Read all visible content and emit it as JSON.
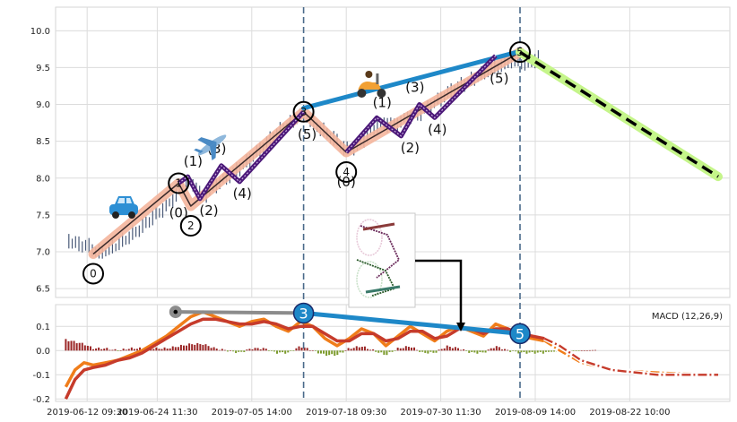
{
  "chart_data": [
    {
      "type": "line",
      "panel": "price",
      "x_tick_labels": [
        "2019-06-12 09:30",
        "2019-06-24 11:30",
        "2019-07-05 14:00",
        "2019-07-18 09:30",
        "2019-07-30 11:30",
        "2019-08-09 14:00",
        "2019-08-22 10:00"
      ],
      "ylim": [
        6.38,
        10.32
      ],
      "yticks": [
        "6.5",
        "7.0",
        "7.5",
        "8.0",
        "8.5",
        "9.0",
        "9.5",
        "10.0"
      ],
      "grid": true,
      "price_points": [
        [
          2,
          7.15
        ],
        [
          5,
          7.1
        ],
        [
          8,
          7.08
        ],
        [
          12,
          6.98
        ],
        [
          16,
          7.05
        ],
        [
          20,
          7.15
        ],
        [
          25,
          7.3
        ],
        [
          30,
          7.48
        ],
        [
          34,
          7.62
        ],
        [
          38,
          7.8
        ],
        [
          41,
          7.97
        ],
        [
          43,
          7.9
        ],
        [
          46,
          7.75
        ],
        [
          50,
          7.9
        ],
        [
          55,
          8.05
        ],
        [
          60,
          8.2
        ],
        [
          65,
          8.4
        ],
        [
          70,
          8.6
        ],
        [
          75,
          8.75
        ],
        [
          79,
          8.88
        ],
        [
          82,
          8.75
        ],
        [
          86,
          8.62
        ],
        [
          90,
          8.5
        ],
        [
          93,
          8.38
        ],
        [
          97,
          8.45
        ],
        [
          101,
          8.62
        ],
        [
          105,
          8.75
        ],
        [
          109,
          8.72
        ],
        [
          113,
          8.82
        ],
        [
          118,
          8.9
        ],
        [
          123,
          9.05
        ],
        [
          128,
          9.2
        ],
        [
          133,
          9.3
        ],
        [
          138,
          9.42
        ],
        [
          143,
          9.52
        ],
        [
          148,
          9.6
        ],
        [
          152,
          9.55
        ],
        [
          156,
          9.62
        ]
      ],
      "waves": {
        "main": {
          "points": [
            [
              10,
              6.97
            ],
            [
              38,
              7.93
            ],
            [
              42,
              7.62
            ],
            [
              79,
              8.9
            ],
            [
              93,
              8.35
            ],
            [
              150,
              9.71
            ]
          ],
          "labels": [
            "0",
            "1",
            "2",
            "3",
            "4",
            "5"
          ]
        },
        "sub_one": {
          "points": [
            [
              38,
              7.93
            ],
            [
              41,
              8.02
            ],
            [
              45,
              7.72
            ],
            [
              52,
              8.17
            ],
            [
              58,
              7.95
            ],
            [
              79,
              8.9
            ]
          ],
          "labels": [
            "(0)",
            "(1)",
            "(2)",
            "(3)",
            "(4)",
            "(5)"
          ]
        },
        "sub_two": {
          "points": [
            [
              93,
              8.35
            ],
            [
              103,
              8.82
            ],
            [
              111,
              8.57
            ],
            [
              117,
              9.0
            ],
            [
              122,
              8.82
            ],
            [
              142,
              9.66
            ]
          ],
          "labels": [
            "(0)",
            "(1)",
            "(2)",
            "(3)",
            "(4)",
            "(5)"
          ]
        },
        "trend_line": [
          [
            79,
            8.95
          ],
          [
            150,
            9.72
          ]
        ],
        "forecast": [
          [
            150,
            9.71
          ],
          [
            215,
            8.02
          ]
        ],
        "vertical_markers": [
          79,
          150
        ]
      },
      "icons": [
        "car-icon",
        "airplane-icon",
        "scooter-icon"
      ],
      "colors": {
        "price": "#4a5a78",
        "main_wave": "#f4b59c",
        "main_wave_core": "#3a2a2a",
        "sub_wave": "#4b1878",
        "trend_line": "#1e88c8",
        "forecast_glow": "#c5f58a",
        "forecast": "#000000",
        "marker": "#4a6a8a"
      }
    },
    {
      "type": "line",
      "panel": "macd",
      "legend": "MACD (12,26,9)",
      "legend_position": "top-right",
      "ylim": [
        -0.21,
        0.19
      ],
      "yticks": [
        "-0.2",
        "-0.1",
        "0.0",
        "0.1"
      ],
      "series": [
        {
          "values": [
            [
              1,
              -0.15
            ],
            [
              4,
              -0.08
            ],
            [
              7,
              -0.05
            ],
            [
              10,
              -0.06
            ],
            [
              14,
              -0.05
            ],
            [
              18,
              -0.04
            ],
            [
              22,
              -0.02
            ],
            [
              26,
              0.0
            ],
            [
              30,
              0.03
            ],
            [
              34,
              0.06
            ],
            [
              38,
              0.1
            ],
            [
              42,
              0.14
            ],
            [
              46,
              0.16
            ],
            [
              50,
              0.14
            ],
            [
              54,
              0.12
            ],
            [
              58,
              0.1
            ],
            [
              62,
              0.12
            ],
            [
              66,
              0.13
            ],
            [
              70,
              0.1
            ],
            [
              74,
              0.08
            ],
            [
              78,
              0.12
            ],
            [
              82,
              0.1
            ],
            [
              86,
              0.05
            ],
            [
              90,
              0.02
            ],
            [
              94,
              0.05
            ],
            [
              98,
              0.09
            ],
            [
              102,
              0.07
            ],
            [
              106,
              0.02
            ],
            [
              110,
              0.06
            ],
            [
              114,
              0.1
            ],
            [
              118,
              0.07
            ],
            [
              122,
              0.04
            ],
            [
              126,
              0.08
            ],
            [
              130,
              0.1
            ],
            [
              134,
              0.08
            ],
            [
              138,
              0.06
            ],
            [
              142,
              0.11
            ],
            [
              146,
              0.09
            ],
            [
              150,
              0.06
            ],
            [
              154,
              0.05
            ],
            [
              158,
              0.04
            ]
          ],
          "color": "#f07d1a"
        },
        {
          "values": [
            [
              1,
              -0.2
            ],
            [
              4,
              -0.12
            ],
            [
              7,
              -0.08
            ],
            [
              10,
              -0.07
            ],
            [
              14,
              -0.06
            ],
            [
              18,
              -0.04
            ],
            [
              22,
              -0.03
            ],
            [
              26,
              -0.01
            ],
            [
              30,
              0.02
            ],
            [
              34,
              0.05
            ],
            [
              38,
              0.08
            ],
            [
              42,
              0.11
            ],
            [
              46,
              0.13
            ],
            [
              50,
              0.13
            ],
            [
              54,
              0.12
            ],
            [
              58,
              0.11
            ],
            [
              62,
              0.11
            ],
            [
              66,
              0.12
            ],
            [
              70,
              0.11
            ],
            [
              74,
              0.09
            ],
            [
              78,
              0.1
            ],
            [
              82,
              0.1
            ],
            [
              86,
              0.07
            ],
            [
              90,
              0.04
            ],
            [
              94,
              0.04
            ],
            [
              98,
              0.07
            ],
            [
              102,
              0.07
            ],
            [
              106,
              0.04
            ],
            [
              110,
              0.05
            ],
            [
              114,
              0.08
            ],
            [
              118,
              0.08
            ],
            [
              122,
              0.05
            ],
            [
              126,
              0.06
            ],
            [
              130,
              0.09
            ],
            [
              134,
              0.09
            ],
            [
              138,
              0.07
            ],
            [
              142,
              0.09
            ],
            [
              146,
              0.09
            ],
            [
              150,
              0.07
            ],
            [
              154,
              0.06
            ],
            [
              158,
              0.05
            ]
          ],
          "color": "#c63b2b"
        }
      ],
      "forecast_series": [
        {
          "values": [
            [
              158,
              0.04
            ],
            [
              163,
              0.0
            ],
            [
              170,
              -0.05
            ],
            [
              180,
              -0.08
            ],
            [
              195,
              -0.09
            ],
            [
              215,
              -0.1
            ]
          ],
          "color": "#f07d1a"
        },
        {
          "values": [
            [
              158,
              0.05
            ],
            [
              163,
              0.02
            ],
            [
              170,
              -0.04
            ],
            [
              180,
              -0.08
            ],
            [
              195,
              -0.1
            ],
            [
              215,
              -0.1
            ]
          ],
          "color": "#c63b2b"
        }
      ],
      "trend_line": {
        "points": [
          [
            79,
            0.155
          ],
          [
            150,
            0.07
          ]
        ],
        "labels": [
          "3",
          "5"
        ],
        "color": "#1e88c8"
      },
      "connector": {
        "points": [
          [
            37,
            0.16
          ],
          [
            79,
            0.155
          ]
        ],
        "color": "#8c8c8c"
      },
      "histogram_colors": {
        "positive": "#9b2626",
        "negative": "#7a9a2a"
      }
    }
  ]
}
